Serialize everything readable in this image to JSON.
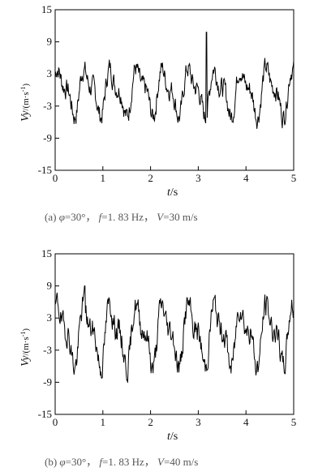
{
  "chart_data": [
    {
      "type": "line",
      "ylabel_var": "Vy",
      "ylabel_unit": "/(m·s",
      "ylabel_sup": "-1",
      "ylabel_close": ")",
      "xlabel_var": "t",
      "xlabel_unit": "/s",
      "xlim": [
        0,
        5
      ],
      "ylim": [
        -15,
        15
      ],
      "xticks": [
        "0",
        "1",
        "2",
        "3",
        "4",
        "5"
      ],
      "yticks": [
        "15",
        "9",
        "3",
        "-3",
        "-9",
        "-15"
      ],
      "ytick_values": [
        15,
        9,
        3,
        -3,
        -9,
        -15
      ],
      "frequency": 1.83,
      "amplitude": 4.8,
      "noise": 2.0,
      "offset": -0.2,
      "spike": {
        "x": 3.17,
        "y": 10.8
      },
      "caption": {
        "prefix": "(a)",
        "phi": "φ",
        "phi_val": "=30°，",
        "f": "f",
        "f_val": "=1. 83 Hz，",
        "v": "V",
        "v_val": "=30 m/s"
      }
    },
    {
      "type": "line",
      "ylabel_var": "Vy",
      "ylabel_unit": "/(m·s",
      "ylabel_sup": "-1",
      "ylabel_close": ")",
      "xlabel_var": "t",
      "xlabel_unit": "/s",
      "xlim": [
        0,
        5
      ],
      "ylim": [
        -15,
        15
      ],
      "xticks": [
        "0",
        "1",
        "2",
        "3",
        "4",
        "5"
      ],
      "yticks": [
        "15",
        "9",
        "3",
        "-3",
        "-9",
        "-15"
      ],
      "ytick_values": [
        15,
        9,
        3,
        -3,
        -9,
        -15
      ],
      "frequency": 1.83,
      "amplitude": 6.2,
      "noise": 2.4,
      "offset": 0.0,
      "spike": {
        "x": 0.62,
        "y": 9.0
      },
      "caption": {
        "prefix": "(b)",
        "phi": "φ",
        "phi_val": "=30°，",
        "f": "f",
        "f_val": "=1. 83 Hz，",
        "v": "V",
        "v_val": "=40 m/s"
      }
    }
  ]
}
